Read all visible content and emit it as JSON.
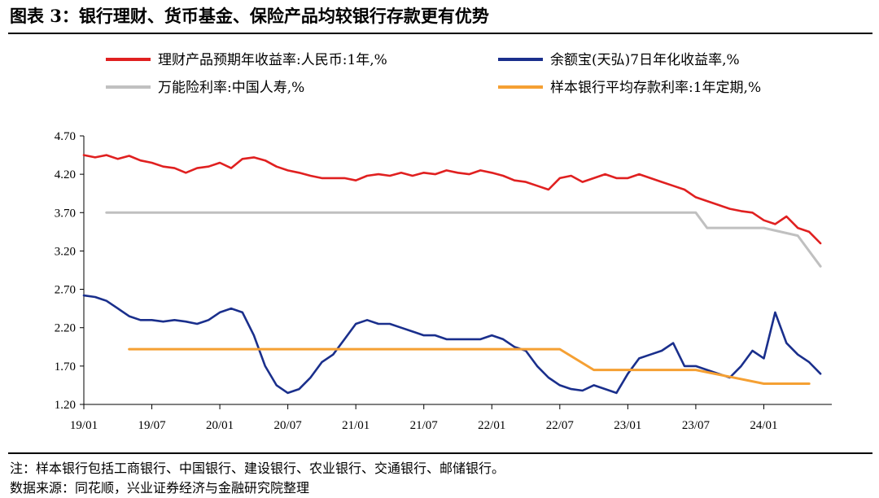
{
  "title": "图表 3：银行理财、货币基金、保险产品均较银行存款更有优势",
  "notes": {
    "note": "注：样本银行包括工商银行、中国银行、建设银行、农业银行、交通银行、邮储银行。",
    "source": "数据来源：同花顺，兴业证券经济与金融研究院整理"
  },
  "chart_data": {
    "type": "line",
    "ylim": [
      1.2,
      4.7
    ],
    "yticks": [
      "4.70",
      "4.20",
      "3.70",
      "3.20",
      "2.70",
      "2.20",
      "1.70",
      "1.20"
    ],
    "xticks": [
      "19/01",
      "19/07",
      "20/01",
      "20/07",
      "21/01",
      "21/07",
      "22/01",
      "22/07",
      "23/01",
      "23/07",
      "24/01"
    ],
    "grid": false,
    "legend_position": "top",
    "series": [
      {
        "name": "理财产品预期年收益率:人民币:1年,%",
        "color": "#e02020",
        "x": [
          "2019-01",
          "2019-02",
          "2019-03",
          "2019-04",
          "2019-05",
          "2019-06",
          "2019-07",
          "2019-08",
          "2019-09",
          "2019-10",
          "2019-11",
          "2019-12",
          "2020-01",
          "2020-02",
          "2020-03",
          "2020-04",
          "2020-05",
          "2020-06",
          "2020-07",
          "2020-08",
          "2020-09",
          "2020-10",
          "2020-11",
          "2020-12",
          "2021-01",
          "2021-02",
          "2021-03",
          "2021-04",
          "2021-05",
          "2021-06",
          "2021-07",
          "2021-08",
          "2021-09",
          "2021-10",
          "2021-11",
          "2021-12",
          "2022-01",
          "2022-02",
          "2022-03",
          "2022-04",
          "2022-05",
          "2022-06",
          "2022-07",
          "2022-08",
          "2022-09",
          "2022-10",
          "2022-11",
          "2022-12",
          "2023-01",
          "2023-02",
          "2023-03",
          "2023-04",
          "2023-05",
          "2023-06",
          "2023-07",
          "2023-08",
          "2023-09",
          "2023-10",
          "2023-11",
          "2023-12",
          "2024-01",
          "2024-02",
          "2024-03",
          "2024-04",
          "2024-05",
          "2024-06"
        ],
        "values": [
          4.45,
          4.42,
          4.45,
          4.4,
          4.44,
          4.38,
          4.35,
          4.3,
          4.28,
          4.22,
          4.28,
          4.3,
          4.35,
          4.28,
          4.4,
          4.42,
          4.38,
          4.3,
          4.25,
          4.22,
          4.18,
          4.15,
          4.15,
          4.15,
          4.12,
          4.18,
          4.2,
          4.18,
          4.22,
          4.18,
          4.22,
          4.2,
          4.25,
          4.22,
          4.2,
          4.25,
          4.22,
          4.18,
          4.12,
          4.1,
          4.05,
          4.0,
          4.15,
          4.18,
          4.1,
          4.15,
          4.2,
          4.15,
          4.15,
          4.2,
          4.15,
          4.1,
          4.05,
          4.0,
          3.9,
          3.85,
          3.8,
          3.75,
          3.72,
          3.7,
          3.6,
          3.55,
          3.65,
          3.5,
          3.45,
          3.3
        ]
      },
      {
        "name": "余额宝(天弘)7日年化收益率,%",
        "color": "#1a2f8c",
        "x": [
          "2019-01",
          "2019-02",
          "2019-03",
          "2019-04",
          "2019-05",
          "2019-06",
          "2019-07",
          "2019-08",
          "2019-09",
          "2019-10",
          "2019-11",
          "2019-12",
          "2020-01",
          "2020-02",
          "2020-03",
          "2020-04",
          "2020-05",
          "2020-06",
          "2020-07",
          "2020-08",
          "2020-09",
          "2020-10",
          "2020-11",
          "2020-12",
          "2021-01",
          "2021-02",
          "2021-03",
          "2021-04",
          "2021-05",
          "2021-06",
          "2021-07",
          "2021-08",
          "2021-09",
          "2021-10",
          "2021-11",
          "2021-12",
          "2022-01",
          "2022-02",
          "2022-03",
          "2022-04",
          "2022-05",
          "2022-06",
          "2022-07",
          "2022-08",
          "2022-09",
          "2022-10",
          "2022-11",
          "2022-12",
          "2023-01",
          "2023-02",
          "2023-03",
          "2023-04",
          "2023-05",
          "2023-06",
          "2023-07",
          "2023-08",
          "2023-09",
          "2023-10",
          "2023-11",
          "2023-12",
          "2024-01",
          "2024-02",
          "2024-03",
          "2024-04",
          "2024-05",
          "2024-06"
        ],
        "values": [
          2.62,
          2.6,
          2.55,
          2.45,
          2.35,
          2.3,
          2.3,
          2.28,
          2.3,
          2.28,
          2.25,
          2.3,
          2.4,
          2.45,
          2.4,
          2.1,
          1.7,
          1.45,
          1.35,
          1.4,
          1.55,
          1.75,
          1.85,
          2.05,
          2.25,
          2.3,
          2.25,
          2.25,
          2.2,
          2.15,
          2.1,
          2.1,
          2.05,
          2.05,
          2.05,
          2.05,
          2.1,
          2.05,
          1.95,
          1.9,
          1.7,
          1.55,
          1.45,
          1.4,
          1.38,
          1.45,
          1.4,
          1.35,
          1.6,
          1.8,
          1.85,
          1.9,
          2.0,
          1.7,
          1.7,
          1.65,
          1.6,
          1.55,
          1.7,
          1.9,
          1.8,
          2.4,
          2.0,
          1.85,
          1.75,
          1.6
        ]
      },
      {
        "name": "万能险利率:中国人寿,%",
        "color": "#c0c0c0",
        "x": [
          "2019-03",
          "2023-07",
          "2023-08",
          "2024-01",
          "2024-04",
          "2024-06"
        ],
        "values": [
          3.7,
          3.7,
          3.5,
          3.5,
          3.4,
          3.0
        ]
      },
      {
        "name": "样本银行平均存款利率:1年定期,%",
        "color": "#f5a033",
        "x": [
          "2019-05",
          "2022-07",
          "2022-10",
          "2023-07",
          "2024-01",
          "2024-05"
        ],
        "values": [
          1.92,
          1.92,
          1.65,
          1.65,
          1.47,
          1.47
        ]
      }
    ]
  }
}
